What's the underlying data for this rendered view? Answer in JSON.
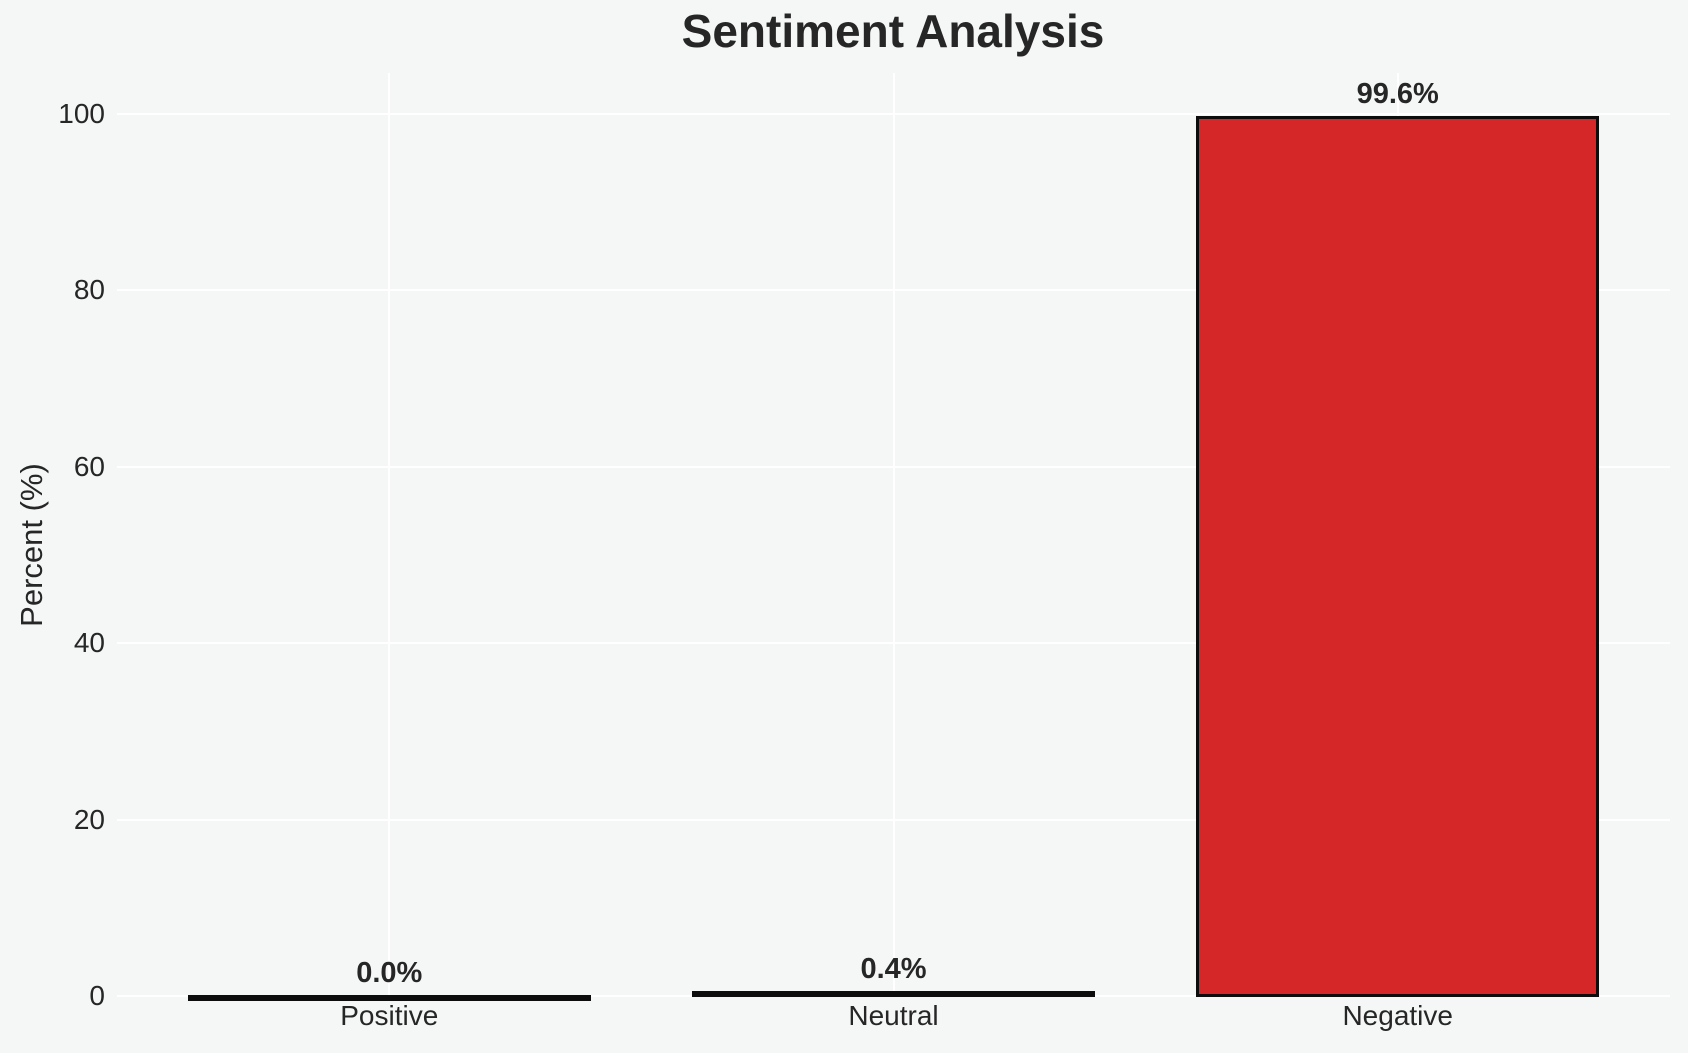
{
  "chart_data": {
    "type": "bar",
    "title": "Sentiment Analysis",
    "ylabel": "Percent (%)",
    "xlabel": "",
    "categories": [
      "Positive",
      "Neutral",
      "Negative"
    ],
    "values": [
      0.0,
      0.4,
      99.6
    ],
    "value_labels": [
      "0.0%",
      "0.4%",
      "99.6%"
    ],
    "y_ticks": [
      0,
      20,
      40,
      60,
      80,
      100
    ],
    "ylim": [
      0,
      104.6
    ],
    "grid": true,
    "legend": false,
    "colors": {
      "bar_fill": "#d62728",
      "bar_edge": "#0d0d0d",
      "background": "#f5f6f6",
      "gridline": "#ffffff",
      "text": "#262626"
    }
  }
}
